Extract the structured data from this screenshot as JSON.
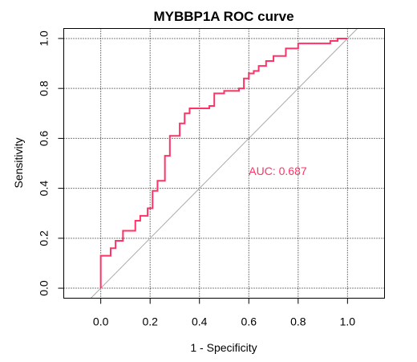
{
  "chart_data": {
    "type": "line",
    "title": "MYBBP1A ROC curve",
    "xlabel": "1 - Specificity",
    "ylabel": "Sensitivity",
    "xlim": [
      -0.15,
      1.15
    ],
    "ylim": [
      -0.04,
      1.04
    ],
    "x_ticks": [
      "0.0",
      "0.2",
      "0.4",
      "0.6",
      "0.8",
      "1.0"
    ],
    "y_ticks": [
      "0.0",
      "0.2",
      "0.4",
      "0.6",
      "0.8",
      "1.0"
    ],
    "grid": true,
    "colors": {
      "roc": "#ff3366",
      "diagonal": "#aaaaaa",
      "grid": "#000000"
    },
    "annotation": {
      "text": "AUC: 0.687",
      "x": 0.6,
      "y": 0.47
    },
    "series": [
      {
        "x": [
          0.0,
          0.0,
          0.04,
          0.04,
          0.06,
          0.06,
          0.09,
          0.09,
          0.14,
          0.14,
          0.16,
          0.16,
          0.19,
          0.19,
          0.21,
          0.21,
          0.23,
          0.23,
          0.26,
          0.26,
          0.28,
          0.28,
          0.32,
          0.32,
          0.34,
          0.34,
          0.36,
          0.36,
          0.44,
          0.44,
          0.46,
          0.46,
          0.5,
          0.5,
          0.56,
          0.56,
          0.58,
          0.58,
          0.6,
          0.6,
          0.62,
          0.62,
          0.64,
          0.64,
          0.67,
          0.67,
          0.7,
          0.7,
          0.75,
          0.75,
          0.8,
          0.8,
          0.85,
          0.85,
          0.93,
          0.93,
          0.96,
          0.96,
          1.0
        ],
        "y": [
          0.0,
          0.13,
          0.13,
          0.16,
          0.16,
          0.19,
          0.19,
          0.23,
          0.23,
          0.27,
          0.27,
          0.29,
          0.29,
          0.32,
          0.32,
          0.39,
          0.39,
          0.43,
          0.43,
          0.53,
          0.53,
          0.61,
          0.61,
          0.66,
          0.66,
          0.7,
          0.7,
          0.72,
          0.72,
          0.73,
          0.73,
          0.78,
          0.78,
          0.79,
          0.79,
          0.8,
          0.8,
          0.84,
          0.84,
          0.86,
          0.86,
          0.87,
          0.87,
          0.89,
          0.89,
          0.91,
          0.91,
          0.93,
          0.93,
          0.96,
          0.96,
          0.98,
          0.98,
          0.98,
          0.98,
          0.99,
          0.99,
          1.0,
          1.0
        ]
      }
    ]
  }
}
